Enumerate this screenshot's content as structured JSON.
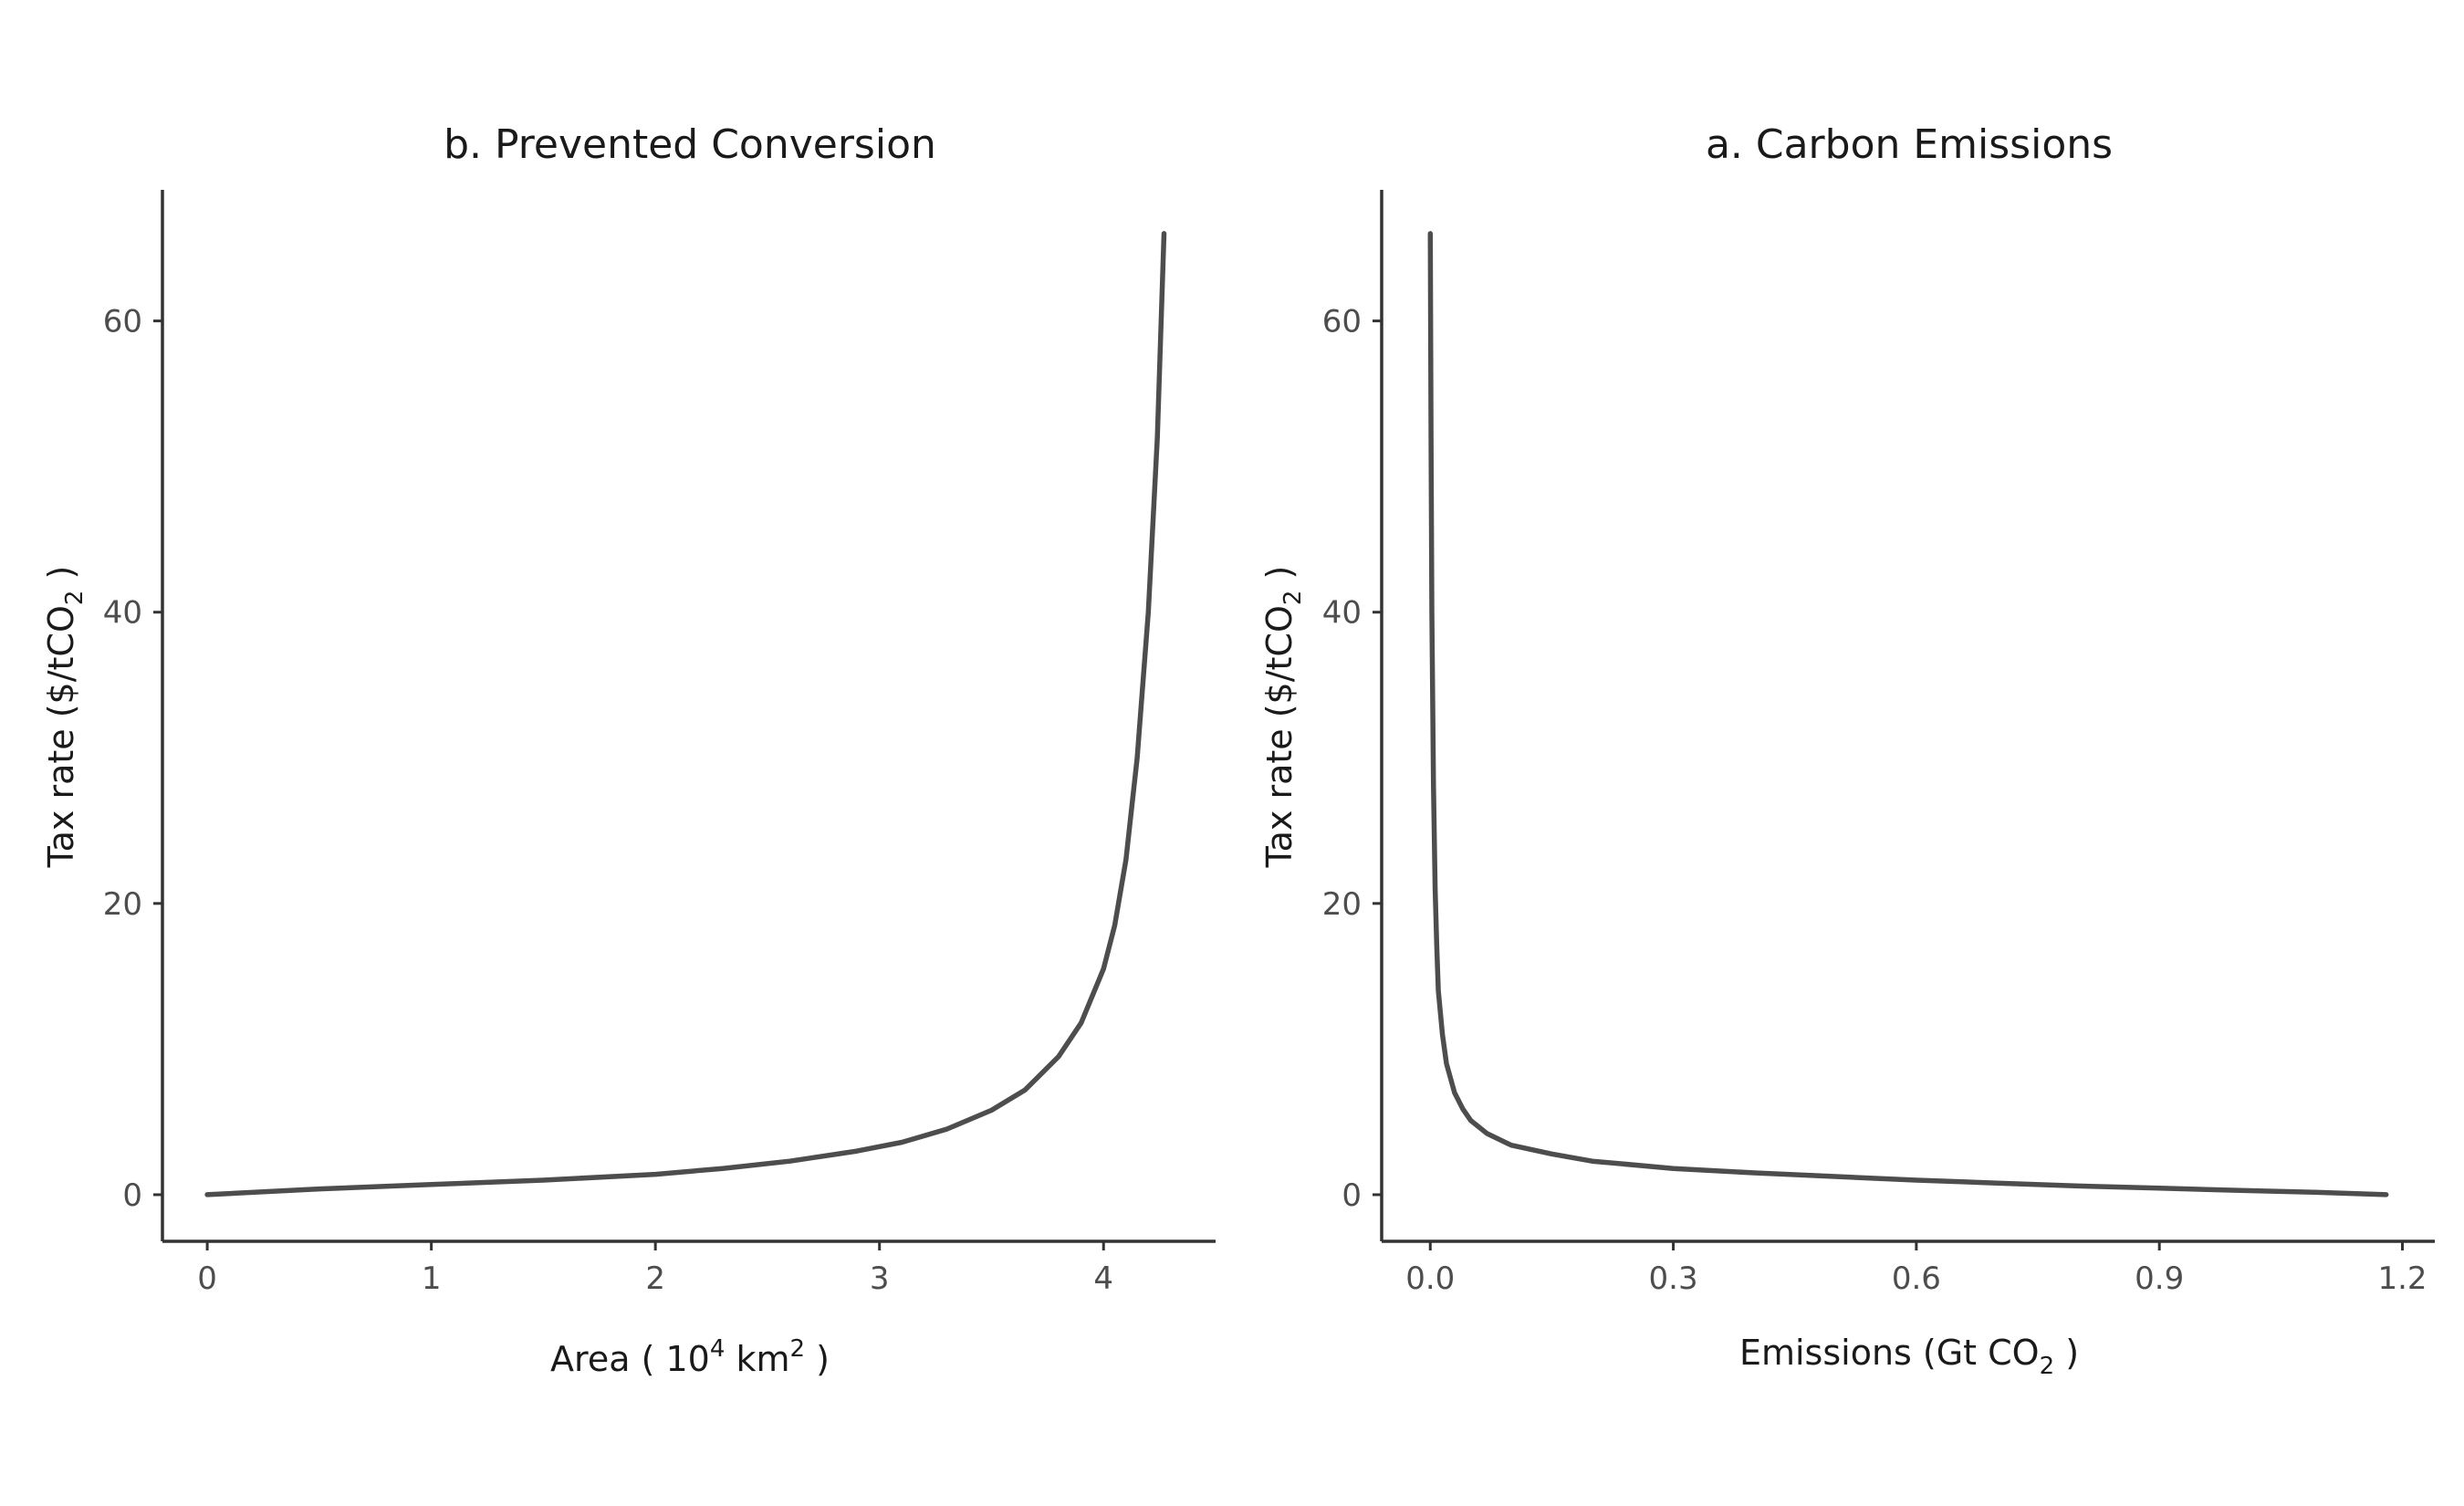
{
  "chart_data": [
    {
      "type": "line",
      "title": "b. Prevented Conversion",
      "xlabel_parts": [
        "Area ( 10",
        "4",
        " km",
        "2",
        " )"
      ],
      "ylabel_parts": [
        "Tax rate ($/tCO",
        "2",
        " )"
      ],
      "xlim": [
        -0.2,
        4.5
      ],
      "ylim": [
        -3.2,
        69
      ],
      "xticks": [
        0,
        1,
        2,
        3,
        4
      ],
      "xtick_labels": [
        "0",
        "1",
        "2",
        "3",
        "4"
      ],
      "yticks": [
        0,
        20,
        40,
        60
      ],
      "ytick_labels": [
        "0",
        "20",
        "40",
        "60"
      ],
      "grid": false,
      "series": [
        {
          "x": [
            0.0,
            0.5,
            1.0,
            1.5,
            2.0,
            2.3,
            2.6,
            2.9,
            3.1,
            3.3,
            3.5,
            3.65,
            3.8,
            3.9,
            4.0,
            4.05,
            4.1,
            4.15,
            4.2,
            4.24,
            4.27
          ],
          "y": [
            0.0,
            0.4,
            0.7,
            1.0,
            1.4,
            1.8,
            2.3,
            3.0,
            3.6,
            4.5,
            5.8,
            7.2,
            9.5,
            11.8,
            15.5,
            18.5,
            23.0,
            30.0,
            40.0,
            52.0,
            66.0
          ]
        }
      ]
    },
    {
      "type": "line",
      "title": "a. Carbon Emissions",
      "xlabel_parts": [
        "Emissions (Gt CO",
        "2",
        " )"
      ],
      "ylabel_parts": [
        "Tax rate ($/tCO",
        "2",
        " )"
      ],
      "xlim": [
        -0.06,
        1.24
      ],
      "ylim": [
        -3.2,
        69
      ],
      "xticks": [
        0.0,
        0.3,
        0.6,
        0.9,
        1.2
      ],
      "xtick_labels": [
        "0.0",
        "0.3",
        "0.6",
        "0.9",
        "1.2"
      ],
      "yticks": [
        0,
        20,
        40,
        60
      ],
      "ytick_labels": [
        "0",
        "20",
        "40",
        "60"
      ],
      "grid": false,
      "series": [
        {
          "x": [
            0.0,
            0.001,
            0.002,
            0.004,
            0.006,
            0.008,
            0.01,
            0.015,
            0.02,
            0.03,
            0.04,
            0.05,
            0.07,
            0.1,
            0.15,
            0.2,
            0.3,
            0.4,
            0.5,
            0.6,
            0.7,
            0.8,
            0.9,
            1.0,
            1.1,
            1.18
          ],
          "y": [
            66.0,
            52.0,
            40.0,
            28.0,
            21.0,
            17.0,
            14.0,
            11.0,
            9.0,
            7.0,
            5.9,
            5.1,
            4.2,
            3.4,
            2.8,
            2.3,
            1.8,
            1.5,
            1.25,
            1.0,
            0.8,
            0.6,
            0.45,
            0.3,
            0.15,
            0.0
          ]
        }
      ]
    }
  ]
}
